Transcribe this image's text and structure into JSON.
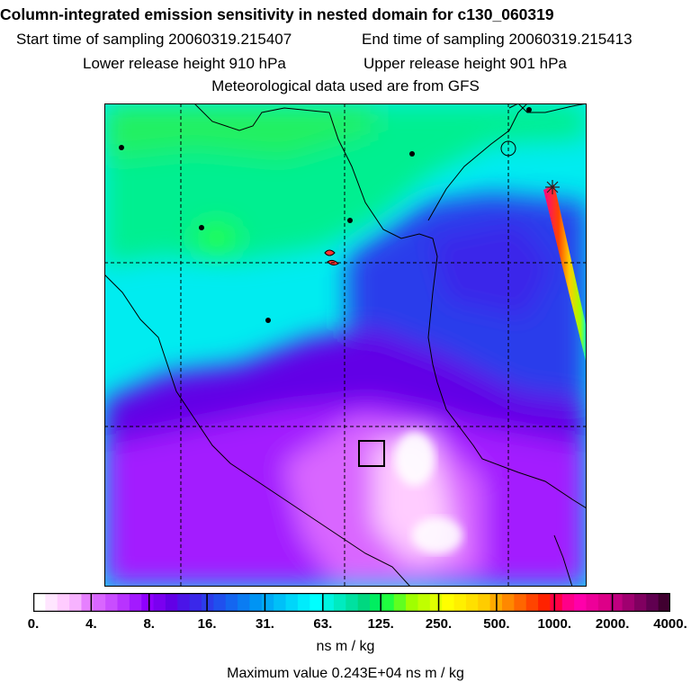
{
  "title": "Column-integrated emission sensitivity in nested domain for c130_060319",
  "sampling": {
    "start": "Start time of sampling 20060319.215407",
    "end": "End time of sampling 20060319.215413"
  },
  "release": {
    "lower": "Lower release height  910 hPa",
    "upper": "Upper release height  901 hPa"
  },
  "met_data": "Meteorological data used are from GFS",
  "colorbar": {
    "tick_labels": [
      "0.",
      "4.",
      "8.",
      "16.",
      "31.",
      "63.",
      "125.",
      "250.",
      "500.",
      "1000.",
      "2000.",
      "4000."
    ],
    "units": "ns m / kg",
    "colors": [
      "#ffffff",
      "#ffe6ff",
      "#ffccff",
      "#f7b3ff",
      "#e680ff",
      "#d966ff",
      "#c94dff",
      "#b833ff",
      "#a31aff",
      "#8f00ff",
      "#7a00f0",
      "#6200e6",
      "#4b14e8",
      "#3a28ea",
      "#2c3ceb",
      "#2050ee",
      "#1466f0",
      "#0a7cf2",
      "#0094f4",
      "#00aaf6",
      "#00c0f8",
      "#00d6fa",
      "#00ecfc",
      "#00ffff",
      "#00f5e0",
      "#00ebc0",
      "#00e1a0",
      "#00d880",
      "#00ee60",
      "#20ff40",
      "#60ff20",
      "#a0ff00",
      "#c0ff00",
      "#e0ff00",
      "#ffff00",
      "#fff000",
      "#ffe000",
      "#ffcc00",
      "#ffaa00",
      "#ff8800",
      "#ff6600",
      "#ff4400",
      "#ff2200",
      "#ff0044",
      "#ff0088",
      "#ff00aa",
      "#ee0099",
      "#dd0088",
      "#c00080",
      "#a00070",
      "#800060",
      "#600050",
      "#400030"
    ]
  },
  "max_value": "Maximum value  0.243E+04 ns m / kg"
}
